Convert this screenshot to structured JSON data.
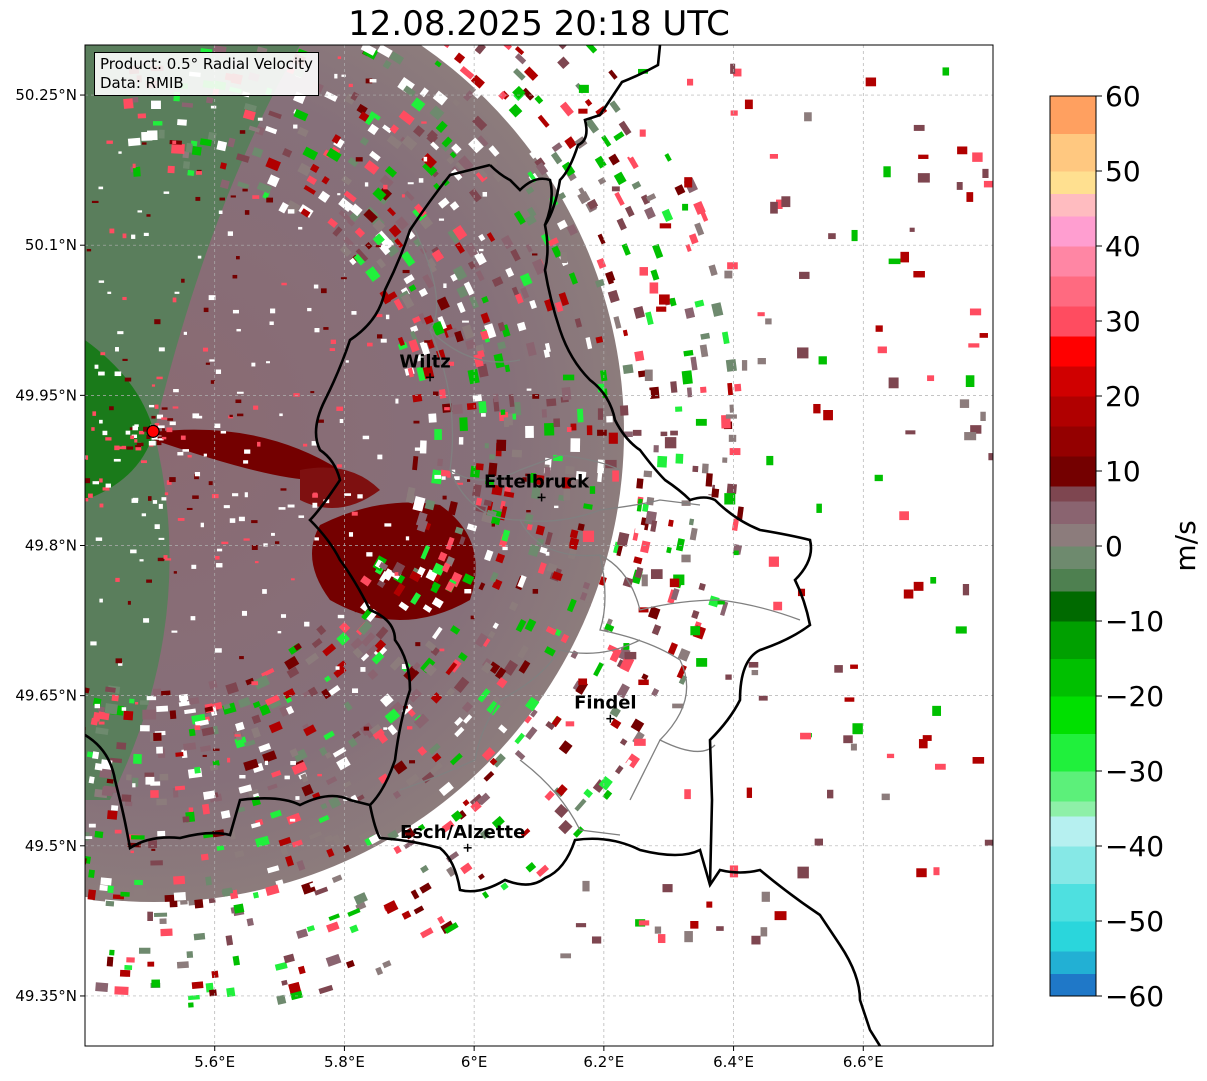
{
  "title": "12.08.2025 20:18 UTC",
  "info": {
    "product": "Product: 0.5° Radial Velocity",
    "data": "Data: RMIB"
  },
  "map": {
    "lon_range": [
      5.4,
      6.8
    ],
    "lat_range": [
      49.3,
      50.3
    ],
    "lon_ticks": [
      "5.6°E",
      "5.8°E",
      "6°E",
      "6.2°E",
      "6.4°E",
      "6.6°E"
    ],
    "lon_tick_values": [
      5.6,
      5.8,
      6.0,
      6.2,
      6.4,
      6.6
    ],
    "lat_ticks": [
      "50.25°N",
      "50.1°N",
      "49.95°N",
      "49.8°N",
      "49.65°N",
      "49.5°N",
      "49.35°N"
    ],
    "lat_tick_values": [
      50.25,
      50.1,
      49.95,
      49.8,
      49.65,
      49.5,
      49.35
    ],
    "gridlines": true,
    "radar_site": {
      "lon": 5.505,
      "lat": 49.914,
      "color": "#ff0000"
    },
    "cities": [
      {
        "name": "Wiltz",
        "lon": 5.932,
        "lat": 49.968
      },
      {
        "name": "Ettelbruck",
        "lon": 6.104,
        "lat": 49.848
      },
      {
        "name": "Findel",
        "lon": 6.21,
        "lat": 49.627
      },
      {
        "name": "Esch/Alzette",
        "lon": 5.99,
        "lat": 49.498
      }
    ],
    "border_color": "#000000",
    "canton_color": "#808080"
  },
  "colorbar": {
    "label": "m/s",
    "range": [
      -60,
      60
    ],
    "ticks": [
      "60",
      "50",
      "40",
      "30",
      "20",
      "10",
      "0",
      "−10",
      "−20",
      "−30",
      "−40",
      "−50",
      "−60"
    ],
    "tick_values": [
      60,
      50,
      40,
      30,
      20,
      10,
      0,
      -10,
      -20,
      -30,
      -40,
      -50,
      -60
    ],
    "stops": [
      {
        "from": -60,
        "to": -57,
        "color": "#1f78c8"
      },
      {
        "from": -57,
        "to": -54,
        "color": "#22b0d4"
      },
      {
        "from": -54,
        "to": -50,
        "color": "#2ad6dc"
      },
      {
        "from": -50,
        "to": -45,
        "color": "#4ee0e0"
      },
      {
        "from": -45,
        "to": -40,
        "color": "#86e8e6"
      },
      {
        "from": -40,
        "to": -36,
        "color": "#b6f0f0"
      },
      {
        "from": -36,
        "to": -34,
        "color": "#8ef0a8"
      },
      {
        "from": -34,
        "to": -30,
        "color": "#5cf07a"
      },
      {
        "from": -30,
        "to": -25,
        "color": "#20f03c"
      },
      {
        "from": -25,
        "to": -20,
        "color": "#00e000"
      },
      {
        "from": -20,
        "to": -15,
        "color": "#00c000"
      },
      {
        "from": -15,
        "to": -10,
        "color": "#00a000"
      },
      {
        "from": -10,
        "to": -6,
        "color": "#006a00"
      },
      {
        "from": -6,
        "to": -3,
        "color": "#4e8050"
      },
      {
        "from": -3,
        "to": 0,
        "color": "#6e8a6e"
      },
      {
        "from": 0,
        "to": 3,
        "color": "#8c7c7c"
      },
      {
        "from": 3,
        "to": 6,
        "color": "#8a6470"
      },
      {
        "from": 6,
        "to": 8,
        "color": "#7e4650"
      },
      {
        "from": 8,
        "to": 12,
        "color": "#740000"
      },
      {
        "from": 12,
        "to": 16,
        "color": "#940000"
      },
      {
        "from": 16,
        "to": 20,
        "color": "#b00000"
      },
      {
        "from": 20,
        "to": 24,
        "color": "#d00000"
      },
      {
        "from": 24,
        "to": 28,
        "color": "#ff0000"
      },
      {
        "from": 28,
        "to": 32,
        "color": "#ff4c60"
      },
      {
        "from": 32,
        "to": 36,
        "color": "#ff6a80"
      },
      {
        "from": 36,
        "to": 40,
        "color": "#ff86a4"
      },
      {
        "from": 40,
        "to": 44,
        "color": "#ff9ed0"
      },
      {
        "from": 44,
        "to": 47,
        "color": "#ffbcc0"
      },
      {
        "from": 47,
        "to": 50,
        "color": "#ffe090"
      },
      {
        "from": 50,
        "to": 55,
        "color": "#ffc880"
      },
      {
        "from": 55,
        "to": 60,
        "color": "#ffa060"
      }
    ]
  }
}
